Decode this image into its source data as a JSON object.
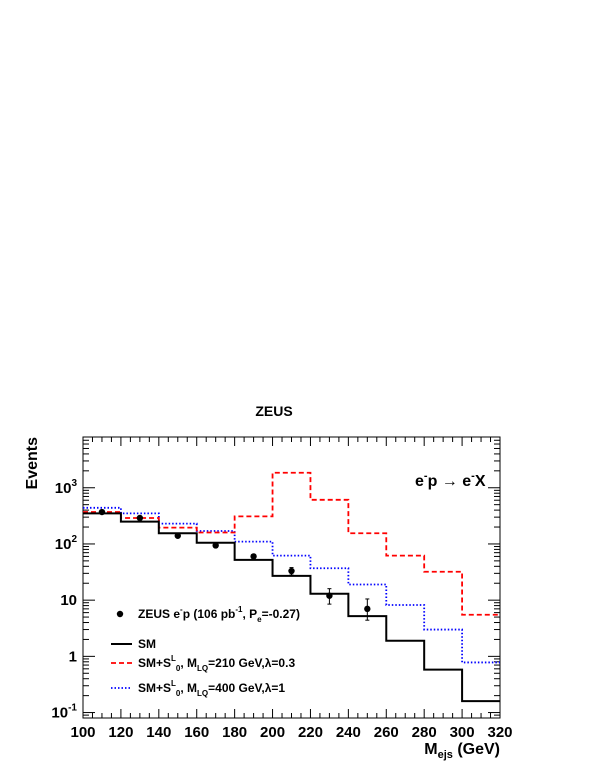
{
  "chart_data": {
    "type": "line",
    "title": "ZEUS",
    "xlabel": "M",
    "xlabel_sub": "ejs",
    "xlabel_unit": " (GeV)",
    "ylabel": "Events",
    "xlim": [
      100,
      320
    ],
    "ylim": [
      0.08,
      8000
    ],
    "y_scale": "log",
    "grid": false,
    "x_ticks": [
      100,
      120,
      140,
      160,
      180,
      200,
      220,
      240,
      260,
      280,
      300,
      320
    ],
    "y_ticks": [
      {
        "value": 0.1,
        "base": "10",
        "exp": "-1"
      },
      {
        "value": 1,
        "base": "1",
        "exp": ""
      },
      {
        "value": 10,
        "base": "10",
        "exp": ""
      },
      {
        "value": 100,
        "base": "10",
        "exp": "2"
      },
      {
        "value": 1000,
        "base": "10",
        "exp": "3"
      }
    ],
    "annotation": {
      "text_a": "e",
      "sup_a": "-",
      "text_b": "p → e",
      "sup_b": "-",
      "text_c": "X"
    },
    "bin_edges": [
      100,
      120,
      140,
      160,
      180,
      200,
      220,
      240,
      260,
      280,
      300,
      320
    ],
    "series": [
      {
        "key": "sm",
        "style": "solid",
        "color": "#000000",
        "values": [
          350,
          250,
          155,
          105,
          52,
          27,
          13,
          5.2,
          1.9,
          0.58,
          0.16
        ]
      },
      {
        "key": "lq210",
        "style": "dashed",
        "color": "#ff0000",
        "values": [
          370,
          290,
          195,
          160,
          310,
          1850,
          610,
          155,
          62,
          32,
          5.5
        ]
      },
      {
        "key": "lq400",
        "style": "dotted",
        "color": "#0000ff",
        "values": [
          440,
          350,
          230,
          170,
          110,
          62,
          37,
          19,
          8.2,
          3.0,
          0.78
        ]
      }
    ],
    "data_points": {
      "x": [
        110,
        130,
        150,
        170,
        190,
        210,
        230,
        250
      ],
      "y": [
        370,
        290,
        140,
        94,
        60,
        33,
        12,
        7
      ],
      "err_low": [
        20,
        16,
        11,
        9,
        7,
        5,
        3.5,
        2.6
      ],
      "err_high": [
        20,
        16,
        11,
        9,
        7,
        5,
        4,
        3.5
      ]
    },
    "legend": {
      "placement": "bottom-left",
      "entries": [
        {
          "kind": "marker",
          "label_parts": [
            "ZEUS e",
            "^-",
            "p (106 pb",
            "^-1",
            ", P",
            "_e",
            "=-0.27)"
          ]
        },
        {
          "kind": "solid",
          "color": "#000000",
          "label_parts": [
            "SM"
          ]
        },
        {
          "kind": "dashed",
          "color": "#ff0000",
          "label_parts": [
            "SM+S",
            "^L",
            "_0",
            ", M",
            "_LQ",
            "=210 GeV,λ=0.3"
          ]
        },
        {
          "kind": "dotted",
          "color": "#0000ff",
          "label_parts": [
            "SM+S",
            "^L",
            "_0",
            ", M",
            "_LQ",
            "=400 GeV,λ=1"
          ]
        }
      ]
    }
  }
}
